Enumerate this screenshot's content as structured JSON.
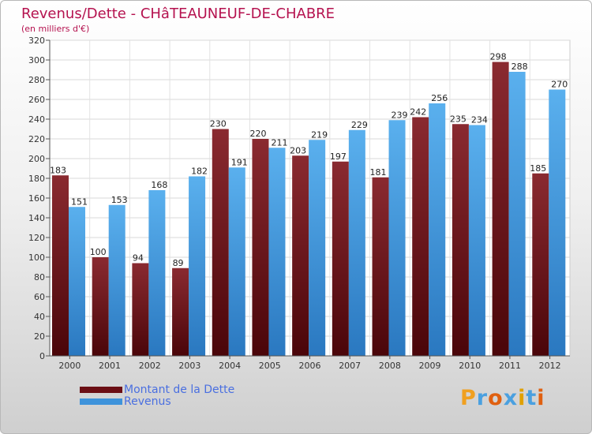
{
  "title": "Revenus/Dette - CHâTEAUNEUF-DE-CHABRE",
  "subtitle": "(en milliers d'€)",
  "colors": {
    "dette": "#6b0e14",
    "revenus": "#3e93db",
    "title": "#b5124f",
    "legend_text": "#4a6fe0"
  },
  "logo": {
    "text": "Proxiti",
    "colors": [
      "#f0a020",
      "#4aa0e0",
      "#e06010",
      "#4aa0e0",
      "#e0a000",
      "#4aa0e0",
      "#e06010"
    ]
  },
  "chart_data": {
    "type": "bar",
    "categories": [
      "2000",
      "2001",
      "2002",
      "2003",
      "2004",
      "2005",
      "2006",
      "2007",
      "2008",
      "2009",
      "2010",
      "2011",
      "2012"
    ],
    "series": [
      {
        "name": "Montant de la Dette",
        "values": [
          183,
          100,
          94,
          89,
          230,
          220,
          203,
          197,
          181,
          242,
          235,
          298,
          185
        ]
      },
      {
        "name": "Revenus",
        "values": [
          151,
          153,
          168,
          182,
          191,
          211,
          219,
          229,
          239,
          256,
          234,
          288,
          270
        ]
      }
    ],
    "ylim": [
      0,
      320
    ],
    "yticks": [
      0,
      20,
      40,
      60,
      80,
      100,
      120,
      140,
      160,
      180,
      200,
      220,
      240,
      260,
      280,
      300,
      320
    ],
    "grid": true,
    "legend_position": "bottom-left"
  }
}
